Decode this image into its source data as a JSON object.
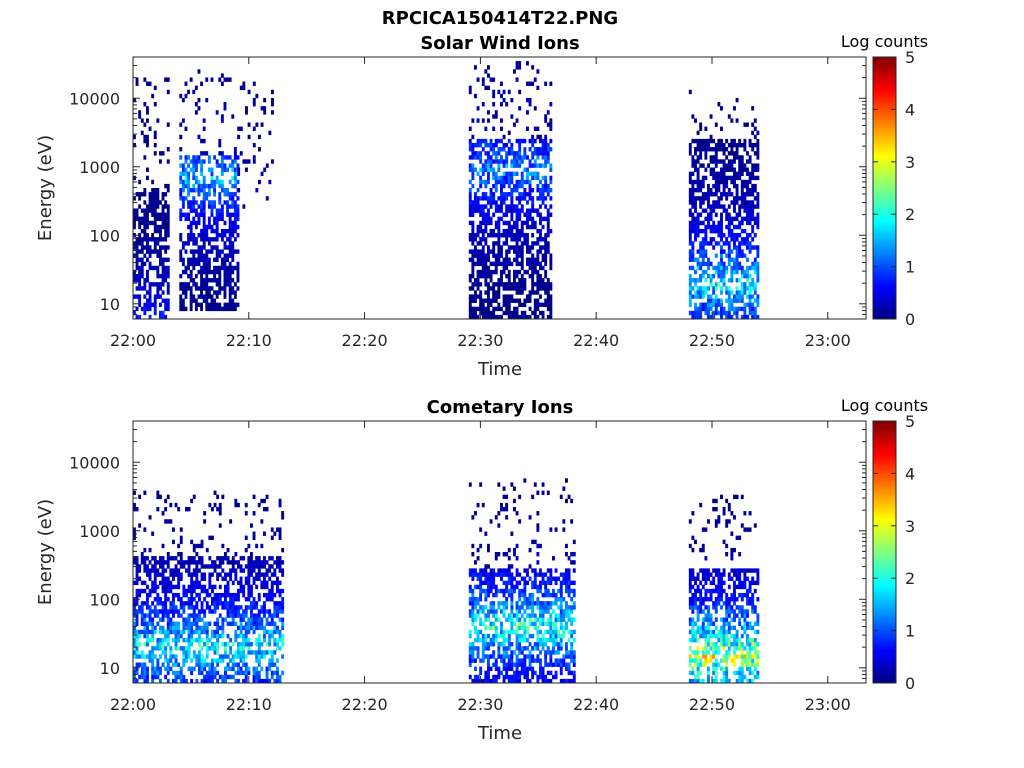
{
  "figure": {
    "title": "RPCICA150414T22.PNG"
  },
  "chart_data": [
    {
      "type": "heatmap",
      "title": "Solar Wind Ions",
      "xlabel": "Time",
      "ylabel": "Energy (eV)",
      "x_ticks": [
        "22:00",
        "22:10",
        "22:20",
        "22:30",
        "22:40",
        "22:50",
        "23:00"
      ],
      "x_tick_minutes": [
        0,
        10,
        20,
        30,
        40,
        50,
        60
      ],
      "xlim_minutes": [
        0,
        63.3
      ],
      "xlim": [
        "22:00",
        "23:03"
      ],
      "y_scale": "log",
      "y_ticks": [
        "10",
        "100",
        "1000",
        "10000"
      ],
      "y_tick_values": [
        10,
        100,
        1000,
        10000
      ],
      "ylim": [
        6,
        40000
      ],
      "colorbar": {
        "label": "Log counts",
        "range": [
          0,
          5
        ],
        "ticks": [
          "0",
          "1",
          "2",
          "3",
          "4",
          "5"
        ],
        "colormap": "jet"
      },
      "bursts": [
        {
          "start": "22:00",
          "end": "22:03",
          "emin": 6,
          "emax": 20000,
          "dense_below": 500,
          "peak_log": 1.0
        },
        {
          "start": "22:04",
          "end": "22:09",
          "emin": 8,
          "emax": 25000,
          "dense_below": 1500,
          "peak_log": 2.0,
          "peak_energy": 700
        },
        {
          "start": "22:09",
          "end": "22:12",
          "emin": 250,
          "emax": 17000,
          "dense_below": 0,
          "peak_log": 1.2
        },
        {
          "start": "22:29",
          "end": "22:36",
          "emin": 6,
          "emax": 35000,
          "dense_below": 2500,
          "peak_log": 1.8,
          "peak_energy": 900
        },
        {
          "start": "22:48",
          "end": "22:54",
          "emin": 6,
          "emax": 14000,
          "dense_below": 2500,
          "peak_log": 2.5,
          "peak_energy": 20
        }
      ]
    },
    {
      "type": "heatmap",
      "title": "Cometary Ions",
      "xlabel": "Time",
      "ylabel": "Energy (eV)",
      "x_ticks": [
        "22:00",
        "22:10",
        "22:20",
        "22:30",
        "22:40",
        "22:50",
        "23:00"
      ],
      "x_tick_minutes": [
        0,
        10,
        20,
        30,
        40,
        50,
        60
      ],
      "xlim_minutes": [
        0,
        63.3
      ],
      "xlim": [
        "22:00",
        "23:03"
      ],
      "y_scale": "log",
      "y_ticks": [
        "10",
        "100",
        "1000",
        "10000"
      ],
      "y_tick_values": [
        10,
        100,
        1000,
        10000
      ],
      "ylim": [
        6,
        40000
      ],
      "colorbar": {
        "label": "Log counts",
        "range": [
          0,
          5
        ],
        "ticks": [
          "0",
          "1",
          "2",
          "3",
          "4",
          "5"
        ],
        "colormap": "jet"
      },
      "bursts": [
        {
          "start": "22:00",
          "end": "22:13",
          "emin": 6,
          "emax": 4000,
          "dense_below": 450,
          "peak_log": 2.6,
          "peak_energy": 20
        },
        {
          "start": "22:29",
          "end": "22:38",
          "emin": 6,
          "emax": 6000,
          "dense_below": 300,
          "peak_log": 2.8,
          "peak_energy": 40
        },
        {
          "start": "22:48",
          "end": "22:54",
          "emin": 6,
          "emax": 3500,
          "dense_below": 300,
          "peak_log": 3.8,
          "peak_energy": 15
        }
      ]
    }
  ]
}
